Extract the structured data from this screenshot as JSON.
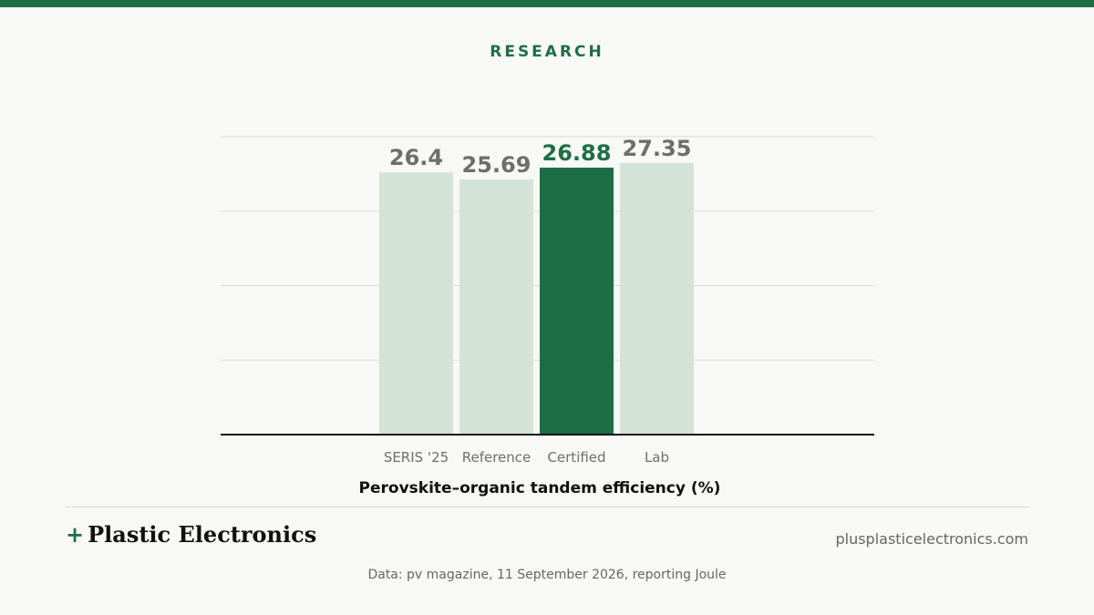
{
  "header": {
    "kicker": "RESEARCH"
  },
  "chart_data": {
    "type": "bar",
    "categories": [
      "SERIS '25",
      "Reference",
      "Certified",
      "Lab"
    ],
    "values": [
      26.4,
      25.69,
      26.88,
      27.35
    ],
    "value_labels": [
      "26.4",
      "25.69",
      "26.88",
      "27.35"
    ],
    "highlight_index": 2,
    "title": "",
    "xlabel": "Perovskite–organic tandem efficiency (%)",
    "ylabel": "",
    "ylim": [
      0,
      30
    ],
    "grid": true,
    "colors": {
      "highlight": "#1e6e45",
      "base": "#d3e3d8",
      "highlight_label": "#1e6e45",
      "base_label": "#6e6e6e"
    }
  },
  "footer": {
    "brand_plus": "+",
    "brand_name": "Plastic Electronics",
    "site": "plusplasticelectronics.com",
    "source": "Data: pv magazine, 11 September 2026, reporting Joule"
  },
  "theme": {
    "accent": "#1e6e45",
    "background": "#f8f8f6"
  }
}
